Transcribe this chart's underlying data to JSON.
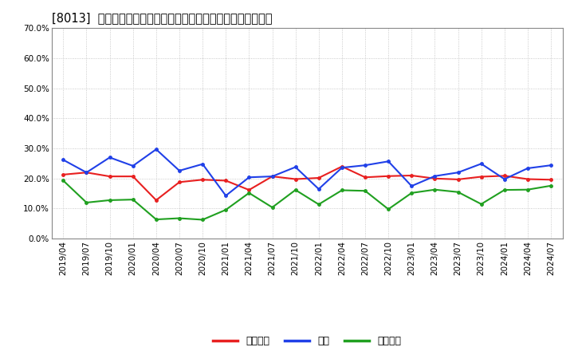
{
  "title": "[8013]  売上債権、在庫、買入債務の総資産に対する比率の推移",
  "x_labels": [
    "2019/04",
    "2019/07",
    "2019/10",
    "2020/01",
    "2020/04",
    "2020/07",
    "2020/10",
    "2021/01",
    "2021/04",
    "2021/07",
    "2021/10",
    "2022/01",
    "2022/04",
    "2022/07",
    "2022/10",
    "2023/01",
    "2023/04",
    "2023/07",
    "2023/10",
    "2024/01",
    "2024/04",
    "2024/07"
  ],
  "urikake": [
    0.213,
    0.22,
    0.207,
    0.207,
    0.128,
    0.188,
    0.196,
    0.193,
    0.162,
    0.207,
    0.198,
    0.202,
    0.24,
    0.204,
    0.208,
    0.21,
    0.2,
    0.197,
    0.206,
    0.209,
    0.198,
    0.196
  ],
  "zaiko": [
    0.262,
    0.22,
    0.27,
    0.242,
    0.297,
    0.226,
    0.248,
    0.143,
    0.204,
    0.207,
    0.238,
    0.165,
    0.236,
    0.244,
    0.257,
    0.175,
    0.208,
    0.22,
    0.249,
    0.198,
    0.234,
    0.244
  ],
  "kaiire": [
    0.193,
    0.12,
    0.128,
    0.13,
    0.064,
    0.068,
    0.063,
    0.096,
    0.152,
    0.104,
    0.162,
    0.114,
    0.161,
    0.159,
    0.098,
    0.152,
    0.163,
    0.155,
    0.115,
    0.162,
    0.163,
    0.176
  ],
  "urikake_color": "#e82020",
  "zaiko_color": "#2040e8",
  "kaiire_color": "#20a020",
  "ylim": [
    0.0,
    0.7
  ],
  "yticks": [
    0.0,
    0.1,
    0.2,
    0.3,
    0.4,
    0.5,
    0.6,
    0.7
  ],
  "legend_urikake": "売上債権",
  "legend_zaiko": "在庫",
  "legend_kaiire": "買入債務",
  "bg_color": "#ffffff",
  "grid_color": "#bbbbbb",
  "title_fontsize": 10.5,
  "tick_fontsize": 7.5,
  "legend_fontsize": 9
}
